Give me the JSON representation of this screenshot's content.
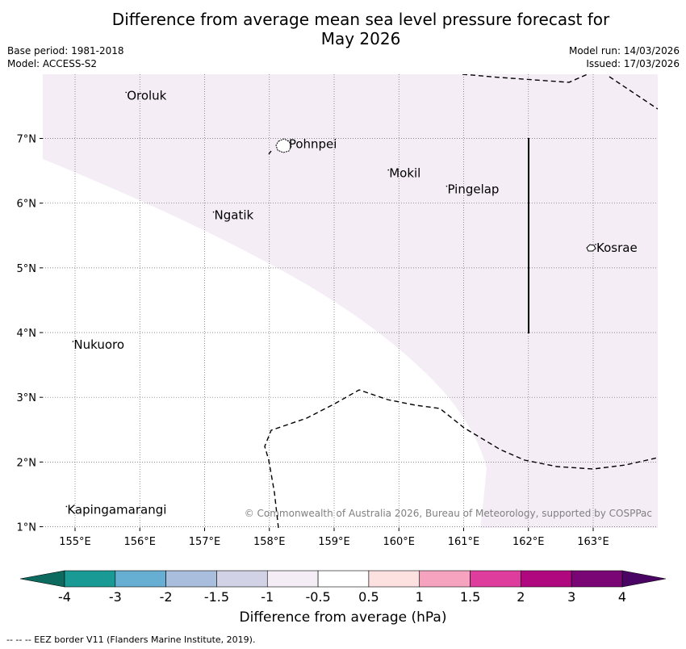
{
  "title": {
    "line1": "Difference from average mean sea level pressure forecast for",
    "line2": "May 2026"
  },
  "meta": {
    "base_period": "Base period: 1981-2018",
    "model": "Model: ACCESS-S2",
    "model_run": "Model run: 14/03/2026",
    "issued": "Issued: 17/03/2026"
  },
  "map": {
    "lon_ticks": [
      "155°E",
      "156°E",
      "157°E",
      "158°E",
      "159°E",
      "160°E",
      "161°E",
      "162°E",
      "163°E"
    ],
    "lat_ticks": [
      "7°N",
      "6°N",
      "5°N",
      "4°N",
      "3°N",
      "2°N",
      "1°N"
    ],
    "places": [
      {
        "name": "Oroluk",
        "lon": 155.8,
        "lat": 7.6
      },
      {
        "name": "Pohnpei",
        "lon": 158.3,
        "lat": 6.85
      },
      {
        "name": "Mokil",
        "lon": 159.85,
        "lat": 6.4
      },
      {
        "name": "Pingelap",
        "lon": 160.75,
        "lat": 6.15
      },
      {
        "name": "Ngatik",
        "lon": 157.15,
        "lat": 5.75
      },
      {
        "name": "Kosrae",
        "lon": 163.05,
        "lat": 5.25
      },
      {
        "name": "Nukuoro",
        "lon": 154.98,
        "lat": 3.75
      },
      {
        "name": "Kapingamarangi",
        "lon": 154.88,
        "lat": 1.2
      }
    ],
    "copyright": "© Commonwealth of Australia 2026, Bureau of Meteorology, supported by COSPPac",
    "shade_color": "#f4edf6"
  },
  "colorbar": {
    "tick_labels": [
      "-4",
      "-3",
      "-2",
      "-1.5",
      "-1",
      "-0.5",
      "0.5",
      "1",
      "1.5",
      "2",
      "3",
      "4"
    ],
    "colors": [
      "#1a9a94",
      "#67aed3",
      "#a9bedd",
      "#d1d2e6",
      "#f4edf6",
      "#ffffff",
      "#fde0e0",
      "#f6a3bf",
      "#df3d9e",
      "#b0097f",
      "#7a0675"
    ],
    "under_color": "#0d6a5f",
    "over_color": "#4a0464",
    "label": "Difference from average (hPa)"
  },
  "footer": "-- -- -- EEZ border V11 (Flanders Marine Institute, 2019)."
}
